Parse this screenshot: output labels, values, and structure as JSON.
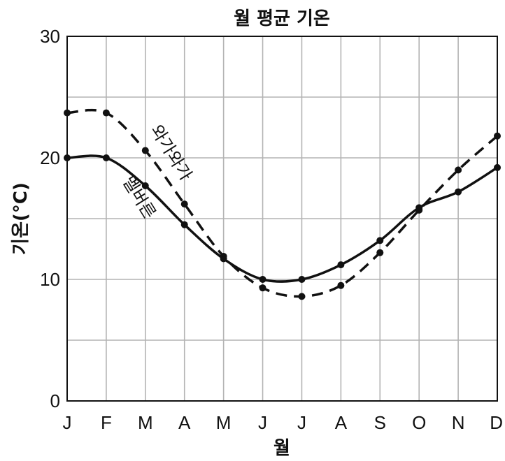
{
  "chart_data": {
    "type": "line",
    "title": "월 평균 기온",
    "xlabel": "월",
    "ylabel": "기온(°C)",
    "categories": [
      "J",
      "F",
      "M",
      "A",
      "M",
      "J",
      "J",
      "A",
      "S",
      "O",
      "N",
      "D"
    ],
    "ylim": [
      0,
      30
    ],
    "yticks": [
      0,
      10,
      20,
      30
    ],
    "grid": true,
    "series": [
      {
        "name": "멜버른",
        "style": "solid",
        "color": "#111111",
        "values": [
          20.0,
          20.0,
          17.7,
          14.5,
          11.7,
          10.0,
          10.0,
          11.2,
          13.2,
          15.9,
          17.2,
          19.2
        ]
      },
      {
        "name": "와가와가",
        "style": "dashed",
        "color": "#111111",
        "values": [
          23.7,
          23.7,
          20.6,
          16.2,
          11.9,
          9.3,
          8.6,
          9.5,
          12.2,
          15.7,
          19.0,
          21.8
        ]
      }
    ]
  }
}
